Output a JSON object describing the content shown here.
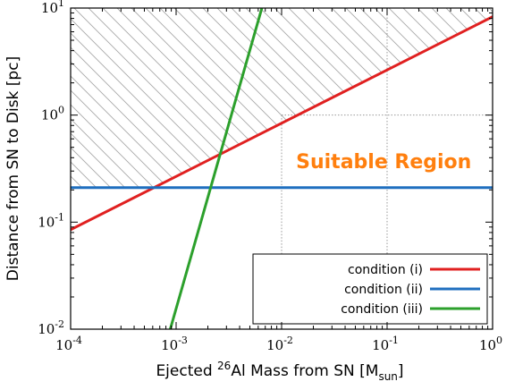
{
  "chart_data": {
    "type": "line",
    "xlabel": {
      "pre": "Ejected ",
      "sup": "26",
      "mid": "Al Mass from SN [M",
      "sub": "sun",
      "post": "]"
    },
    "ylabel": "Distance from SN to Disk [pc]",
    "x_scale": "log",
    "y_scale": "log",
    "xlim": [
      0.0001,
      1
    ],
    "ylim": [
      0.01,
      10
    ],
    "x_ticks": [
      {
        "value": 0.0001,
        "base": "10",
        "exp": "-4"
      },
      {
        "value": 0.001,
        "base": "10",
        "exp": "-3"
      },
      {
        "value": 0.01,
        "base": "10",
        "exp": "-2"
      },
      {
        "value": 0.1,
        "base": "10",
        "exp": "-1"
      },
      {
        "value": 1,
        "base": "10",
        "exp": "0"
      }
    ],
    "y_ticks": [
      {
        "value": 0.01,
        "base": "10",
        "exp": "-2"
      },
      {
        "value": 0.1,
        "base": "10",
        "exp": "-1"
      },
      {
        "value": 1,
        "base": "10",
        "exp": "0"
      },
      {
        "value": 10,
        "base": "10",
        "exp": "1"
      }
    ],
    "series": [
      {
        "name": "condition (i)",
        "color": "#e02020",
        "x": [
          0.0001,
          1
        ],
        "y": [
          0.085,
          8.3
        ]
      },
      {
        "name": "condition (ii)",
        "color": "#1f6fbf",
        "x": [
          0.0001,
          1
        ],
        "y": [
          0.21,
          0.21
        ]
      },
      {
        "name": "condition (iii)",
        "color": "#2ca02c",
        "x": [
          0.00088,
          0.0065
        ],
        "y": [
          0.01,
          10
        ]
      }
    ],
    "hatched_region": "area above condition (i) and condition (ii) lines",
    "annotation": {
      "text": "Suitable Region",
      "color": "#ff7f0e",
      "x": 0.0137,
      "y": 0.32
    },
    "legend": "bottom-right",
    "grid": "dotted guides at x=10^-2, 10^-1 and y=10^0"
  }
}
